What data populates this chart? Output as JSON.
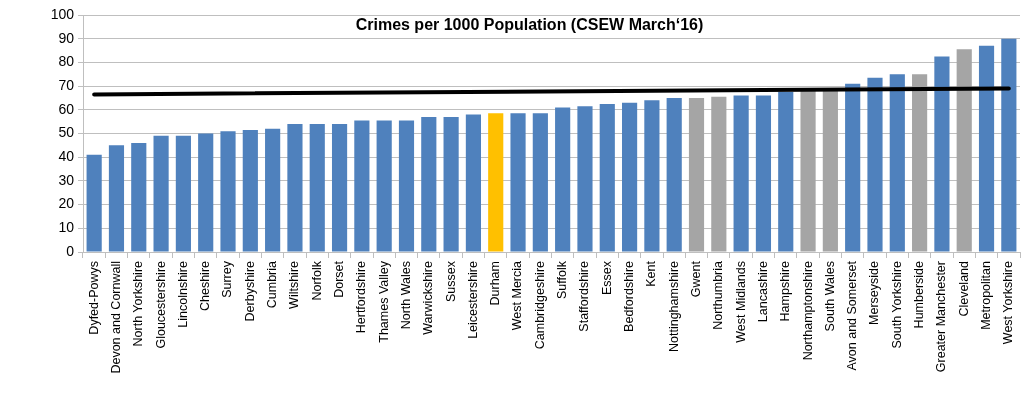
{
  "chart_data": {
    "type": "bar",
    "title": "Crimes per 1000 Population (CSEW March‘16)",
    "categories": [
      "Dyfed-Powys",
      "Devon and Cornwall",
      "North Yorkshire",
      "Gloucestershire",
      "Lincolnshire",
      "Cheshire",
      "Surrey",
      "Derbyshire",
      "Cumbria",
      "Wiltshire",
      "Norfolk",
      "Dorset",
      "Hertfordshire",
      "Thames Valley",
      "North Wales",
      "Warwickshire",
      "Sussex",
      "Leicestershire",
      "Durham",
      "West Mercia",
      "Cambridgeshire",
      "Suffolk",
      "Staffordshire",
      "Essex",
      "Bedfordshire",
      "Kent",
      "Nottinghamshire",
      "Gwent",
      "Northumbria",
      "West Midlands",
      "Lancashire",
      "Hampshire",
      "Northamptonshire",
      "South Wales",
      "Avon and Somerset",
      "Merseyside",
      "South Yorkshire",
      "Humberside",
      "Greater Manchester",
      "Cleveland",
      "Metropolitan",
      "West Yorkshire"
    ],
    "series": [
      {
        "values": [
          41,
          45,
          46,
          49,
          49,
          50,
          51,
          51.5,
          52,
          54,
          54,
          54,
          55.5,
          55.5,
          55.5,
          57,
          57,
          58,
          58.5,
          58.5,
          58.5,
          61,
          61.5,
          62.5,
          63,
          64,
          65,
          65,
          65.5,
          66,
          66,
          67.5,
          68,
          69,
          71,
          73.5,
          75,
          75,
          82.5,
          85.5,
          87,
          90
        ],
        "colors": [
          "#4f81bd",
          "#4f81bd",
          "#4f81bd",
          "#4f81bd",
          "#4f81bd",
          "#4f81bd",
          "#4f81bd",
          "#4f81bd",
          "#4f81bd",
          "#4f81bd",
          "#4f81bd",
          "#4f81bd",
          "#4f81bd",
          "#4f81bd",
          "#4f81bd",
          "#4f81bd",
          "#4f81bd",
          "#4f81bd",
          "#ffc000",
          "#4f81bd",
          "#4f81bd",
          "#4f81bd",
          "#4f81bd",
          "#4f81bd",
          "#4f81bd",
          "#4f81bd",
          "#4f81bd",
          "#a5a5a5",
          "#a5a5a5",
          "#4f81bd",
          "#4f81bd",
          "#4f81bd",
          "#a5a5a5",
          "#a5a5a5",
          "#4f81bd",
          "#4f81bd",
          "#4f81bd",
          "#a5a5a5",
          "#4f81bd",
          "#a5a5a5",
          "#4f81bd",
          "#4f81bd"
        ]
      },
      {
        "type": "line",
        "color": "#000000",
        "x": [
          "Dyfed-Powys",
          "West Yorkshire"
        ],
        "values": [
          66.5,
          69
        ]
      }
    ],
    "ylim": [
      0,
      100
    ],
    "yticks": [
      0,
      10,
      20,
      30,
      40,
      50,
      60,
      70,
      80,
      90,
      100
    ],
    "grid": "y"
  }
}
